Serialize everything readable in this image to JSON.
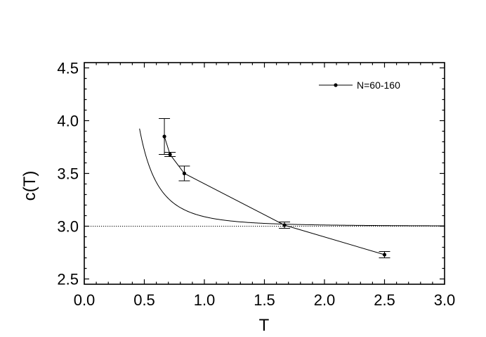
{
  "chart_data": {
    "type": "line",
    "xlabel": "T",
    "ylabel": "c(T)",
    "xlim": [
      0.0,
      3.0
    ],
    "ylim": [
      2.45,
      4.55
    ],
    "x_ticks": [
      "0.0",
      "0.5",
      "1.0",
      "1.5",
      "2.0",
      "2.5",
      "3.0"
    ],
    "y_ticks": [
      "2.5",
      "3.0",
      "3.5",
      "4.0",
      "4.5"
    ],
    "grid": false,
    "legend_position": "top-right",
    "series": [
      {
        "name": "N=60-160",
        "style": "line-with-markers",
        "x": [
          0.667,
          0.714,
          0.833,
          1.667,
          2.5
        ],
        "y": [
          3.85,
          3.68,
          3.5,
          3.01,
          2.73
        ],
        "y_err": [
          0.17,
          0.02,
          0.07,
          0.03,
          0.03
        ]
      },
      {
        "style": "solid-curve",
        "formula": "c(T) = 3 + 0.09 / T^3",
        "x_start": 0.46,
        "x_end": 3.0
      },
      {
        "style": "dotted-horizontal",
        "y": 3.0
      }
    ]
  }
}
